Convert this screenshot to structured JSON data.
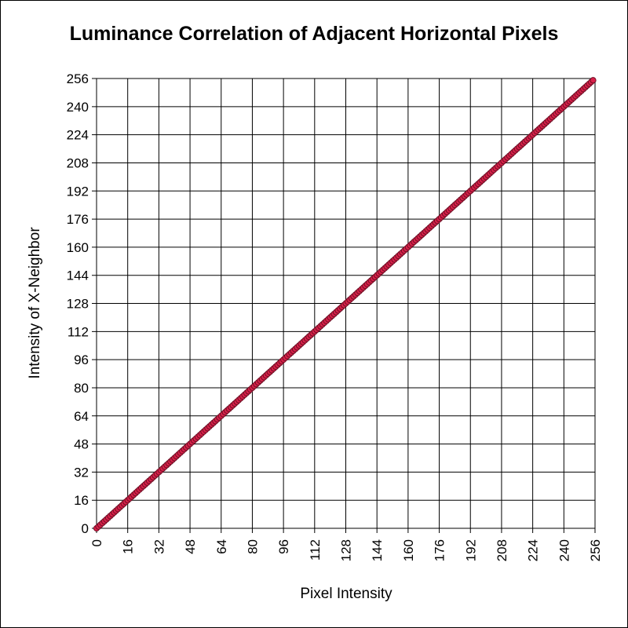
{
  "chart_data": {
    "type": "scatter",
    "title": "Luminance Correlation of Adjacent Horizontal Pixels",
    "xlabel": "Pixel Intensity",
    "ylabel": "Intensity of X-Neighbor",
    "xlim": [
      0,
      256
    ],
    "ylim": [
      0,
      256
    ],
    "x_ticks": [
      "0",
      "16",
      "32",
      "48",
      "64",
      "80",
      "96",
      "112",
      "128",
      "144",
      "160",
      "176",
      "192",
      "208",
      "224",
      "240",
      "256"
    ],
    "y_ticks": [
      "0",
      "16",
      "32",
      "48",
      "64",
      "80",
      "96",
      "112",
      "128",
      "144",
      "160",
      "176",
      "192",
      "208",
      "224",
      "240",
      "256"
    ],
    "grid": true,
    "marker_color": "#d9204a",
    "series": [
      {
        "x": [
          0,
          1,
          2,
          3,
          4,
          5,
          6,
          7,
          8,
          9,
          10,
          11,
          12,
          13,
          14,
          15,
          16,
          17,
          18,
          19,
          20,
          21,
          22,
          23,
          24,
          25,
          26,
          27,
          28,
          29,
          30,
          31,
          32,
          33,
          34,
          35,
          36,
          37,
          38,
          39,
          40,
          41,
          42,
          43,
          44,
          45,
          46,
          47,
          48,
          49,
          50,
          51,
          52,
          53,
          54,
          55,
          56,
          57,
          58,
          59,
          60,
          61,
          62,
          63,
          64,
          65,
          66,
          67,
          68,
          69,
          70,
          71,
          72,
          73,
          74,
          75,
          76,
          77,
          78,
          79,
          80,
          81,
          82,
          83,
          84,
          85,
          86,
          87,
          88,
          89,
          90,
          91,
          92,
          93,
          94,
          95,
          96,
          97,
          98,
          99,
          100,
          101,
          102,
          103,
          104,
          105,
          106,
          107,
          108,
          109,
          110,
          111,
          112,
          113,
          114,
          115,
          116,
          117,
          118,
          119,
          120,
          121,
          122,
          123,
          124,
          125,
          126,
          127,
          128,
          129,
          130,
          131,
          132,
          133,
          134,
          135,
          136,
          137,
          138,
          139,
          140,
          141,
          142,
          143,
          144,
          145,
          146,
          147,
          148,
          149,
          150,
          151,
          152,
          153,
          154,
          155,
          156,
          157,
          158,
          159,
          160,
          161,
          162,
          163,
          164,
          165,
          166,
          167,
          168,
          169,
          170,
          171,
          172,
          173,
          174,
          175,
          176,
          177,
          178,
          179,
          180,
          181,
          182,
          183,
          184,
          185,
          186,
          187,
          188,
          189,
          190,
          191,
          192,
          193,
          194,
          195,
          196,
          197,
          198,
          199,
          200,
          201,
          202,
          203,
          204,
          205,
          206,
          207,
          208,
          209,
          210,
          211,
          212,
          213,
          214,
          215,
          216,
          217,
          218,
          219,
          220,
          221,
          222,
          223,
          224,
          225,
          226,
          227,
          228,
          229,
          230,
          231,
          232,
          233,
          234,
          235,
          236,
          237,
          238,
          239,
          240,
          241,
          242,
          243,
          244,
          245,
          246,
          247,
          248,
          249,
          250,
          251,
          252,
          253,
          254,
          255
        ],
        "y": [
          0,
          1,
          2,
          3,
          4,
          5,
          6,
          7,
          8,
          9,
          10,
          11,
          12,
          13,
          14,
          15,
          16,
          17,
          18,
          19,
          20,
          21,
          22,
          23,
          24,
          25,
          26,
          27,
          28,
          29,
          30,
          31,
          32,
          33,
          34,
          35,
          36,
          37,
          38,
          39,
          40,
          41,
          42,
          43,
          44,
          45,
          46,
          47,
          48,
          49,
          50,
          51,
          52,
          53,
          54,
          55,
          56,
          57,
          58,
          59,
          60,
          61,
          62,
          63,
          64,
          65,
          66,
          67,
          68,
          69,
          70,
          71,
          72,
          73,
          74,
          75,
          76,
          77,
          78,
          79,
          80,
          81,
          82,
          83,
          84,
          85,
          86,
          87,
          88,
          89,
          90,
          91,
          92,
          93,
          94,
          95,
          96,
          97,
          98,
          99,
          100,
          101,
          102,
          103,
          104,
          105,
          106,
          107,
          108,
          109,
          110,
          111,
          112,
          113,
          114,
          115,
          116,
          117,
          118,
          119,
          120,
          121,
          122,
          123,
          124,
          125,
          126,
          127,
          128,
          129,
          130,
          131,
          132,
          133,
          134,
          135,
          136,
          137,
          138,
          139,
          140,
          141,
          142,
          143,
          144,
          145,
          146,
          147,
          148,
          149,
          150,
          151,
          152,
          153,
          154,
          155,
          156,
          157,
          158,
          159,
          160,
          161,
          162,
          163,
          164,
          165,
          166,
          167,
          168,
          169,
          170,
          171,
          172,
          173,
          174,
          175,
          176,
          177,
          178,
          179,
          180,
          181,
          182,
          183,
          184,
          185,
          186,
          187,
          188,
          189,
          190,
          191,
          192,
          193,
          194,
          195,
          196,
          197,
          198,
          199,
          200,
          201,
          202,
          203,
          204,
          205,
          206,
          207,
          208,
          209,
          210,
          211,
          212,
          213,
          214,
          215,
          216,
          217,
          218,
          219,
          220,
          221,
          222,
          223,
          224,
          225,
          226,
          227,
          228,
          229,
          230,
          231,
          232,
          233,
          234,
          235,
          236,
          237,
          238,
          239,
          240,
          241,
          242,
          243,
          244,
          245,
          246,
          247,
          248,
          249,
          250,
          251,
          252,
          253,
          254,
          255
        ]
      }
    ]
  }
}
